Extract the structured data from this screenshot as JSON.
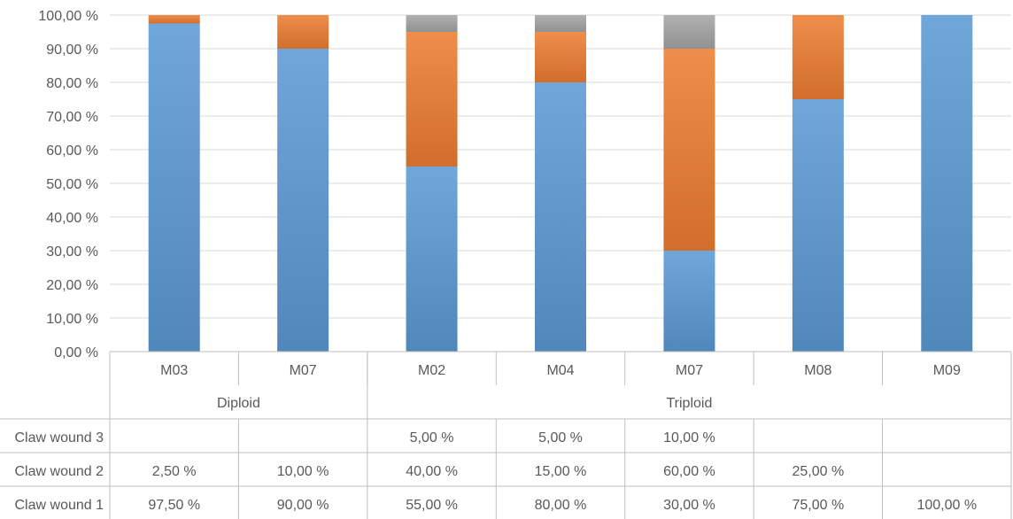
{
  "chart_data": {
    "type": "bar",
    "stacked": true,
    "categories": [
      "M03",
      "M07",
      "M02",
      "M04",
      "M07",
      "M08",
      "M09"
    ],
    "groups": [
      {
        "label": "Diploid",
        "span": 2
      },
      {
        "label": "Triploid",
        "span": 5
      }
    ],
    "series": [
      {
        "name": "Claw wound 1",
        "color": "#5b9bd5",
        "values": [
          97.5,
          90,
          55,
          80,
          30,
          75,
          100
        ],
        "labels": [
          "97,50 %",
          "90,00 %",
          "55,00 %",
          "80,00 %",
          "30,00 %",
          "75,00 %",
          "100,00 %"
        ]
      },
      {
        "name": "Claw wound 2",
        "color": "#ed7d31",
        "values": [
          2.5,
          10,
          40,
          15,
          60,
          25,
          null
        ],
        "labels": [
          "2,50 %",
          "10,00 %",
          "40,00 %",
          "15,00 %",
          "60,00 %",
          "25,00 %",
          ""
        ]
      },
      {
        "name": "Claw wound 3",
        "color": "#a5a5a5",
        "values": [
          null,
          null,
          5,
          5,
          10,
          null,
          null
        ],
        "labels": [
          "",
          "",
          "5,00 %",
          "5,00 %",
          "10,00 %",
          "",
          ""
        ]
      }
    ],
    "ylim": [
      0,
      100
    ],
    "yticks": [
      0,
      10,
      20,
      30,
      40,
      50,
      60,
      70,
      80,
      90,
      100
    ],
    "ytick_labels": [
      "0,00 %",
      "10,00 %",
      "20,00 %",
      "30,00 %",
      "40,00 %",
      "50,00 %",
      "60,00 %",
      "70,00 %",
      "80,00 %",
      "90,00 %",
      "100,00 %"
    ],
    "grid": true,
    "legend": "data-table",
    "title": "",
    "xlabel": "",
    "ylabel": ""
  }
}
